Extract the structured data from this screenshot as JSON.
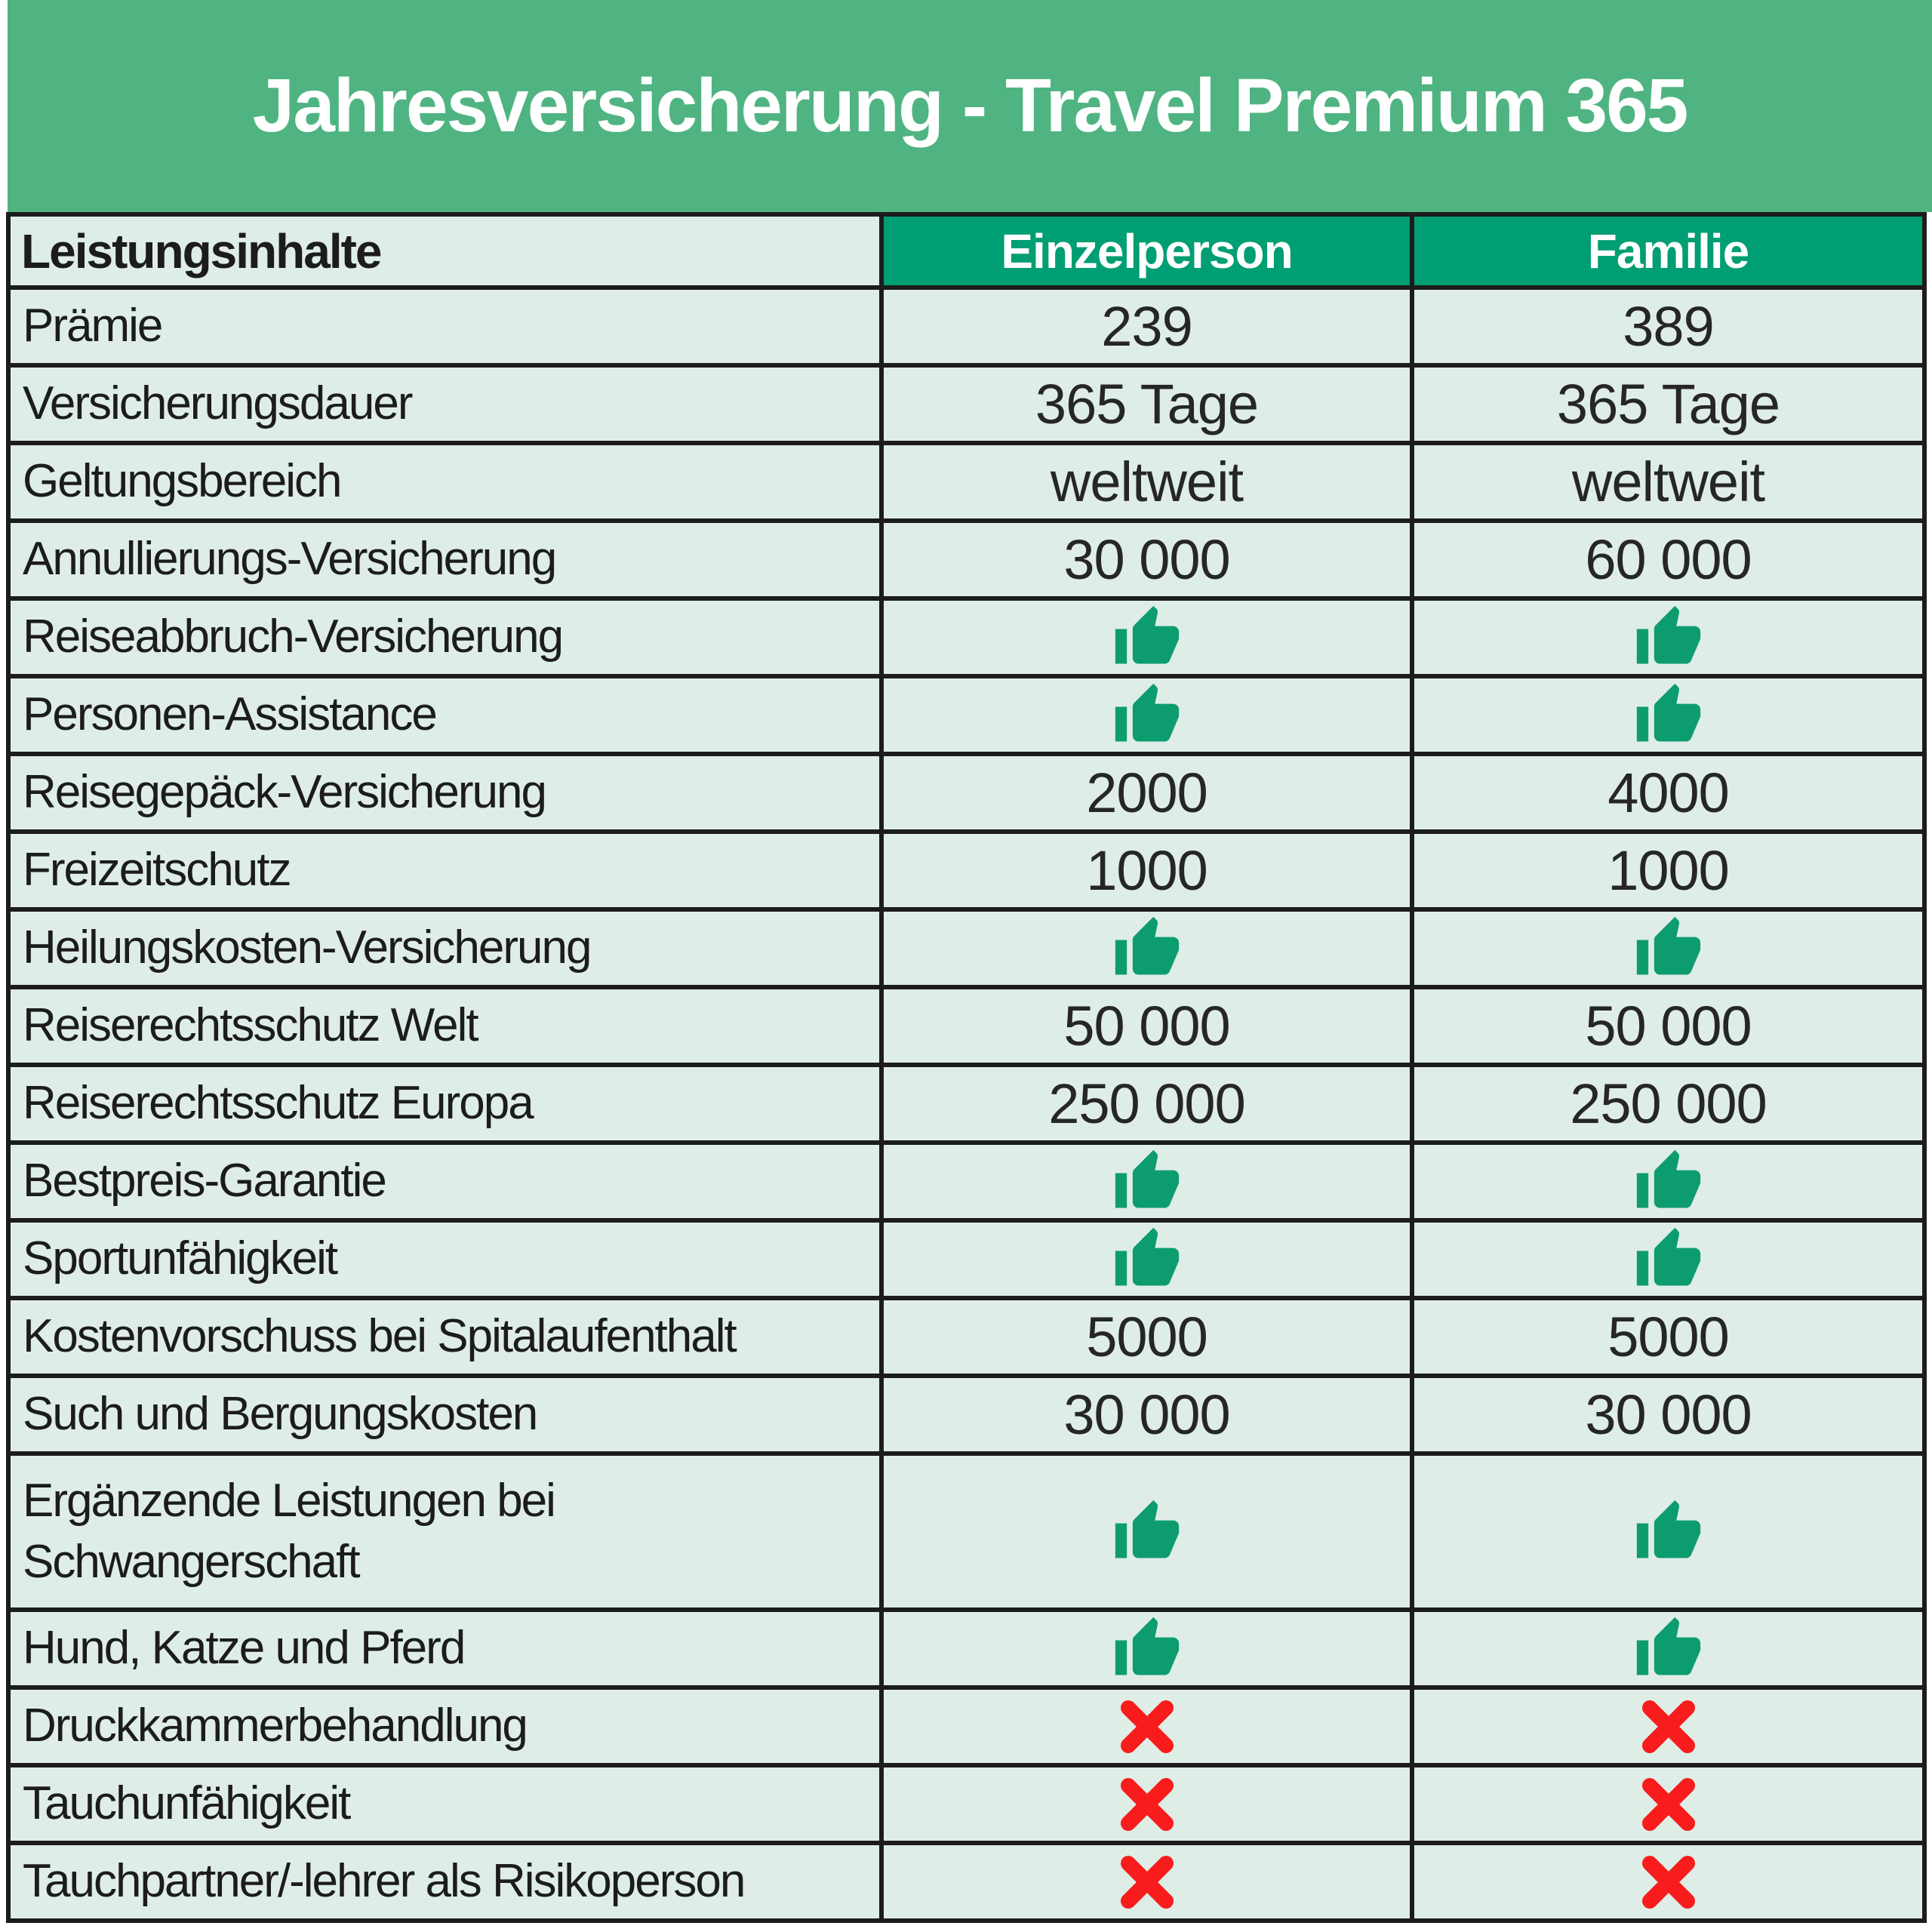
{
  "title": "Jahresversicherung - Travel Premium 365",
  "colors": {
    "banner_green": "#4FB481",
    "header_green": "#009E73",
    "cell_bg": "#DFEDE7",
    "border": "#1C1C1C",
    "thumb_green": "#0D9C70",
    "cross_red": "#F81C1C",
    "title_text": "#FFFFFF",
    "label_text": "#1C1C1C"
  },
  "icons": {
    "thumb-up": "included",
    "cross": "not-included"
  },
  "table": {
    "header": {
      "feature": "Leistungsinhalte",
      "einzelperson": "Einzelperson",
      "familie": "Familie"
    },
    "rows": [
      {
        "label": "Prämie",
        "einzel": {
          "t": "text",
          "v": "239"
        },
        "familie": {
          "t": "text",
          "v": "389"
        }
      },
      {
        "label": "Versicherungsdauer",
        "einzel": {
          "t": "text",
          "v": "365 Tage"
        },
        "familie": {
          "t": "text",
          "v": "365 Tage"
        }
      },
      {
        "label": "Geltungsbereich",
        "einzel": {
          "t": "text",
          "v": "weltweit"
        },
        "familie": {
          "t": "text",
          "v": "weltweit"
        }
      },
      {
        "label": "Annullierungs-Versicherung",
        "einzel": {
          "t": "text",
          "v": "30 000"
        },
        "familie": {
          "t": "text",
          "v": "60 000"
        }
      },
      {
        "label": "Reiseabbruch-Versicherung",
        "einzel": {
          "t": "thumb-up"
        },
        "familie": {
          "t": "thumb-up"
        }
      },
      {
        "label": "Personen-Assistance",
        "einzel": {
          "t": "thumb-up"
        },
        "familie": {
          "t": "thumb-up"
        }
      },
      {
        "label": "Reisegepäck-Versicherung",
        "einzel": {
          "t": "text",
          "v": "2000"
        },
        "familie": {
          "t": "text",
          "v": "4000"
        }
      },
      {
        "label": "Freizeitschutz",
        "einzel": {
          "t": "text",
          "v": "1000"
        },
        "familie": {
          "t": "text",
          "v": "1000"
        }
      },
      {
        "label": "Heilungskosten-Versicherung",
        "einzel": {
          "t": "thumb-up"
        },
        "familie": {
          "t": "thumb-up"
        }
      },
      {
        "label": "Reiserechtsschutz Welt",
        "einzel": {
          "t": "text",
          "v": "50 000"
        },
        "familie": {
          "t": "text",
          "v": "50 000"
        }
      },
      {
        "label": "Reiserechtsschutz Europa",
        "einzel": {
          "t": "text",
          "v": "250 000"
        },
        "familie": {
          "t": "text",
          "v": "250 000"
        }
      },
      {
        "label": "Bestpreis-Garantie",
        "einzel": {
          "t": "thumb-up"
        },
        "familie": {
          "t": "thumb-up"
        }
      },
      {
        "label": "Sportunfähigkeit",
        "einzel": {
          "t": "thumb-up"
        },
        "familie": {
          "t": "thumb-up"
        }
      },
      {
        "label": "Kostenvorschuss bei Spitalaufenthalt",
        "einzel": {
          "t": "text",
          "v": "5000"
        },
        "familie": {
          "t": "text",
          "v": "5000"
        }
      },
      {
        "label": "Such und Bergungskosten",
        "einzel": {
          "t": "text",
          "v": "30 000"
        },
        "familie": {
          "t": "text",
          "v": "30 000"
        }
      },
      {
        "label": "Ergänzende Leistungen bei\nSchwangerschaft",
        "einzel": {
          "t": "thumb-up"
        },
        "familie": {
          "t": "thumb-up"
        }
      },
      {
        "label": "Hund, Katze und Pferd",
        "einzel": {
          "t": "thumb-up"
        },
        "familie": {
          "t": "thumb-up"
        }
      },
      {
        "label": "Druckkammerbehandlung",
        "einzel": {
          "t": "cross"
        },
        "familie": {
          "t": "cross"
        }
      },
      {
        "label": "Tauchunfähigkeit",
        "einzel": {
          "t": "cross"
        },
        "familie": {
          "t": "cross"
        }
      },
      {
        "label": "Tauchpartner/-lehrer als Risikoperson",
        "einzel": {
          "t": "cross"
        },
        "familie": {
          "t": "cross"
        }
      }
    ]
  }
}
